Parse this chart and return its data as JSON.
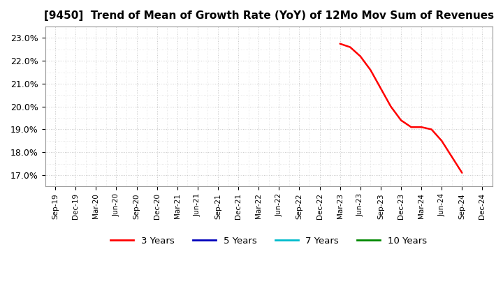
{
  "title": "[9450]  Trend of Mean of Growth Rate (YoY) of 12Mo Mov Sum of Revenues",
  "title_fontsize": 11,
  "background_color": "#ffffff",
  "plot_bg_color": "#ffffff",
  "grid_color": "#bbbbbb",
  "ylim": [
    0.165,
    0.235
  ],
  "yticks": [
    0.17,
    0.18,
    0.19,
    0.2,
    0.21,
    0.22,
    0.23
  ],
  "legend_entries": [
    "3 Years",
    "5 Years",
    "7 Years",
    "10 Years"
  ],
  "legend_colors": [
    "#ff0000",
    "#0000bb",
    "#00bbcc",
    "#008800"
  ],
  "x_labels": [
    "Sep-19",
    "Dec-19",
    "Mar-20",
    "Jun-20",
    "Sep-20",
    "Dec-20",
    "Mar-21",
    "Jun-21",
    "Sep-21",
    "Dec-21",
    "Mar-22",
    "Jun-22",
    "Sep-22",
    "Dec-22",
    "Mar-23",
    "Jun-23",
    "Sep-23",
    "Dec-23",
    "Mar-24",
    "Jun-24",
    "Sep-24",
    "Dec-24"
  ],
  "series_3yr": {
    "color": "#ff0000",
    "x_indices": [
      14,
      14.5,
      15,
      15.5,
      16,
      16.5,
      17,
      17.5,
      18,
      18.5,
      19,
      19.5,
      20
    ],
    "y_values": [
      0.2275,
      0.226,
      0.222,
      0.216,
      0.208,
      0.2,
      0.194,
      0.191,
      0.191,
      0.19,
      0.185,
      0.178,
      0.171
    ]
  }
}
